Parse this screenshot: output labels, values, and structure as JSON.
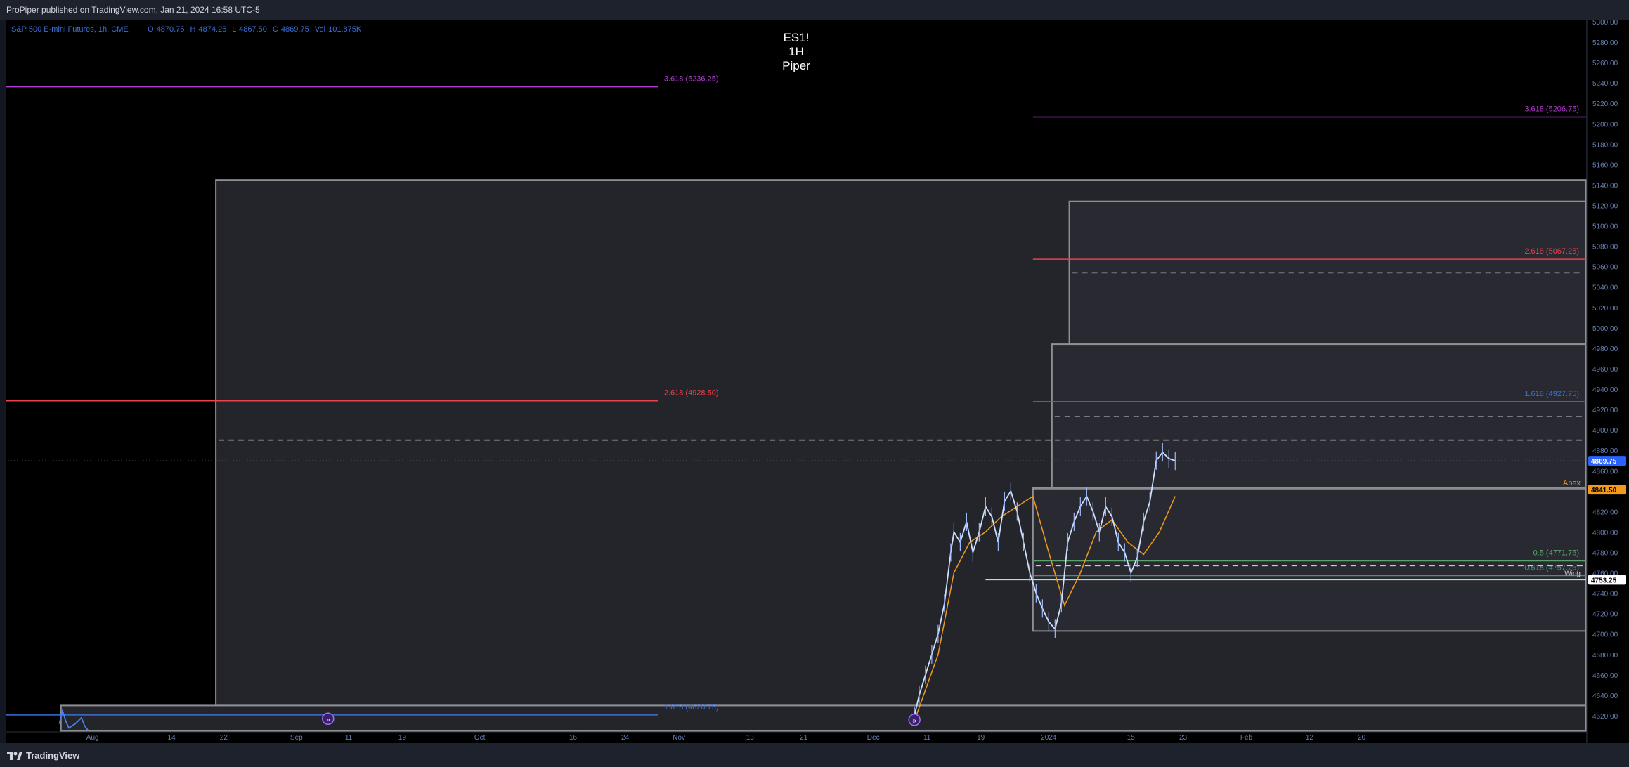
{
  "header": {
    "published": "ProPiper published on TradingView.com, Jan 21, 2024 16:58 UTC-5"
  },
  "footer": {
    "brand": "TradingView"
  },
  "legend": {
    "symbol": "S&P 500 E-mini Futures, 1h, CME",
    "o_label": "O",
    "o_value": "4870.75",
    "h_label": "H",
    "h_value": "4874.25",
    "l_label": "L",
    "l_value": "4867.50",
    "c_label": "C",
    "c_value": "4869.75",
    "vol_label": "Vol",
    "vol_value": "101.875K"
  },
  "watermark": [
    "ES1!",
    "1H",
    "Piper"
  ],
  "chart_data": {
    "type": "line",
    "title": "ES1! 1H",
    "ylim": [
      4600,
      5300
    ],
    "y_ticks": [
      5300,
      5280,
      5260,
      5240,
      5220,
      5200,
      5180,
      5160,
      5140,
      5120,
      5100,
      5080,
      5060,
      5040,
      5020,
      5000,
      4980,
      4960,
      4940,
      4920,
      4900,
      4880,
      4860,
      4840,
      4820,
      4800,
      4780,
      4760,
      4740,
      4720,
      4700,
      4680,
      4660,
      4640,
      4620
    ],
    "x_ticks": [
      {
        "label": "Aug",
        "x": 0.055
      },
      {
        "label": "14",
        "x": 0.105
      },
      {
        "label": "22",
        "x": 0.138
      },
      {
        "label": "Sep",
        "x": 0.184
      },
      {
        "label": "11",
        "x": 0.217
      },
      {
        "label": "19",
        "x": 0.251
      },
      {
        "label": "Oct",
        "x": 0.3
      },
      {
        "label": "16",
        "x": 0.359
      },
      {
        "label": "24",
        "x": 0.392
      },
      {
        "label": "Nov",
        "x": 0.426
      },
      {
        "label": "13",
        "x": 0.471
      },
      {
        "label": "21",
        "x": 0.505
      },
      {
        "label": "Dec",
        "x": 0.549
      },
      {
        "label": "11",
        "x": 0.583
      },
      {
        "label": "19",
        "x": 0.617
      },
      {
        "label": "2024",
        "x": 0.66
      },
      {
        "label": "15",
        "x": 0.712
      },
      {
        "label": "23",
        "x": 0.745
      },
      {
        "label": "Feb",
        "x": 0.785
      },
      {
        "label": "12",
        "x": 0.825
      },
      {
        "label": "20",
        "x": 0.858
      }
    ],
    "fib_levels": [
      {
        "label": "3.618 (5236.25)",
        "value": 5236.25,
        "color": "#b43bd1",
        "x0": 0.0,
        "x1": 0.413
      },
      {
        "label": "3.618 (5206.75)",
        "value": 5206.75,
        "color": "#b43bd1",
        "x0": 0.65,
        "x1": 1.0
      },
      {
        "label": "2.618 (5067.25)",
        "value": 5067.25,
        "color": "#e8424a",
        "x0": 0.65,
        "x1": 1.0
      },
      {
        "label": "2.618 (4928.50)",
        "value": 4928.5,
        "color": "#e8424a",
        "x0": 0.0,
        "x1": 0.413
      },
      {
        "label": "1.618 (4927.75)",
        "value": 4927.75,
        "color": "#3d6fd6",
        "x0": 0.65,
        "x1": 1.0
      },
      {
        "label": "1.618 (4620.75)",
        "value": 4620.75,
        "color": "#3d6fd6",
        "x0": 0.0,
        "x1": 0.413
      },
      {
        "label": "0.5 (4771.75)",
        "value": 4771.75,
        "color": "#5aa36a",
        "x0": 0.65,
        "x1": 1.0
      },
      {
        "label": "0.618 (4757.25)",
        "value": 4757.25,
        "color": "#4a8f7a",
        "x0": 0.65,
        "x1": 1.0
      }
    ],
    "boxes": [
      {
        "x0": 0.133,
        "x1": 1.0,
        "top": 5145,
        "bottom": 4630
      },
      {
        "x0": 0.673,
        "x1": 1.0,
        "top": 5124,
        "bottom": 4984
      },
      {
        "x0": 0.662,
        "x1": 1.0,
        "top": 4984,
        "bottom": 4843
      },
      {
        "x0": 0.65,
        "x1": 1.0,
        "top": 4843,
        "bottom": 4703
      },
      {
        "x0": 0.035,
        "x1": 1.0,
        "top": 4630,
        "bottom": 4605
      }
    ],
    "dashed_levels": [
      {
        "value": 5054,
        "x0": 0.673,
        "x1": 1.0
      },
      {
        "value": 4913,
        "x0": 0.662,
        "x1": 1.0
      },
      {
        "value": 4890,
        "x0": 0.133,
        "x1": 1.0
      },
      {
        "value": 4767,
        "x0": 0.65,
        "x1": 1.0
      }
    ],
    "apex": {
      "label": "Apex",
      "value": 4841.5,
      "price_label": "4841.50"
    },
    "wing": {
      "label": "Wing",
      "value": 4753.25,
      "price_label": "4753.25"
    },
    "last_price": {
      "value": 4869.75,
      "label": "4869.75"
    },
    "price_series": {
      "x": [
        0.034,
        0.036,
        0.038,
        0.04,
        0.044,
        0.048,
        0.05,
        0.052,
        0.575,
        0.578,
        0.582,
        0.586,
        0.59,
        0.594,
        0.598,
        0.6,
        0.604,
        0.608,
        0.612,
        0.616,
        0.62,
        0.624,
        0.628,
        0.632,
        0.636,
        0.64,
        0.644,
        0.648,
        0.652,
        0.656,
        0.66,
        0.664,
        0.668,
        0.672,
        0.676,
        0.68,
        0.684,
        0.688,
        0.692,
        0.696,
        0.7,
        0.704,
        0.708,
        0.712,
        0.716,
        0.72,
        0.724,
        0.728,
        0.732,
        0.736,
        0.74
      ],
      "y": [
        4612,
        4625,
        4615,
        4608,
        4612,
        4618,
        4610,
        4606,
        4620,
        4640,
        4660,
        4680,
        4700,
        4730,
        4780,
        4800,
        4790,
        4810,
        4780,
        4800,
        4825,
        4815,
        4790,
        4830,
        4840,
        4820,
        4790,
        4760,
        4740,
        4725,
        4712,
        4705,
        4730,
        4790,
        4810,
        4825,
        4835,
        4820,
        4800,
        4825,
        4815,
        4790,
        4780,
        4760,
        4775,
        4810,
        4830,
        4870,
        4878,
        4872,
        4869.75
      ]
    },
    "ma_series": {
      "x": [
        0.575,
        0.59,
        0.6,
        0.61,
        0.62,
        0.63,
        0.64,
        0.65,
        0.66,
        0.67,
        0.68,
        0.69,
        0.7,
        0.71,
        0.72,
        0.73,
        0.74
      ],
      "y": [
        4615,
        4680,
        4760,
        4790,
        4800,
        4815,
        4825,
        4835,
        4780,
        4728,
        4760,
        4800,
        4812,
        4790,
        4778,
        4800,
        4835
      ]
    },
    "event_markers": [
      {
        "x": 0.204,
        "value": 4617
      },
      {
        "x": 0.575,
        "value": 4616
      }
    ]
  },
  "colors": {
    "background": "#000000",
    "box_fill": "#2a2c32",
    "box_stroke": "#8d8f94",
    "axis_text": "#6a7fb0",
    "apex": "#f29a1c",
    "last_price": "#2962ff",
    "wing": "#ffffff"
  }
}
